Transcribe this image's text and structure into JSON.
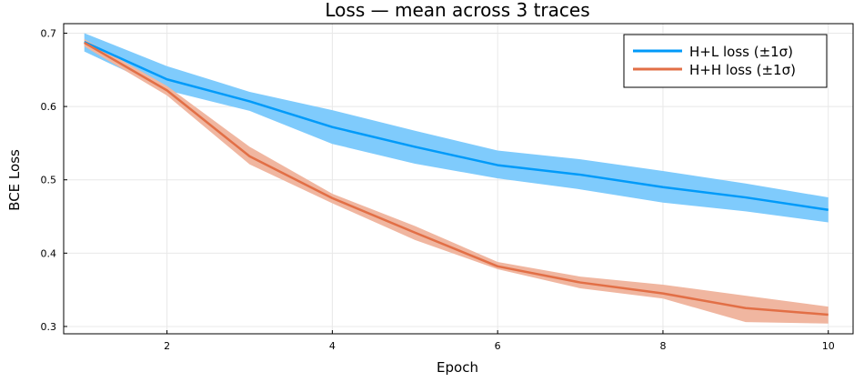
{
  "chart_data": {
    "type": "line",
    "title": "Loss — mean across 3 traces",
    "xlabel": "Epoch",
    "ylabel": "BCE Loss",
    "xlim": [
      0.75,
      10.3
    ],
    "ylim": [
      0.29,
      0.713
    ],
    "x_ticks": [
      2,
      4,
      6,
      8,
      10
    ],
    "y_ticks": [
      0.3,
      0.4,
      0.5,
      0.6,
      0.7
    ],
    "x_tick_labels": [
      "2",
      "4",
      "6",
      "8",
      "10"
    ],
    "y_tick_labels": [
      "0.3",
      "0.4",
      "0.5",
      "0.6",
      "0.7"
    ],
    "grid": true,
    "legend_position": "top-right",
    "x": [
      1,
      2,
      3,
      4,
      5,
      6,
      7,
      8,
      9,
      10
    ],
    "series": [
      {
        "name": "H+L loss (±1σ)",
        "color": "#009af9",
        "band_color": "#7fcbfc",
        "mean": [
          0.688,
          0.637,
          0.607,
          0.572,
          0.545,
          0.52,
          0.507,
          0.49,
          0.476,
          0.459
        ],
        "upper": [
          0.7,
          0.655,
          0.62,
          0.595,
          0.567,
          0.54,
          0.528,
          0.512,
          0.495,
          0.476
        ],
        "lower": [
          0.675,
          0.622,
          0.594,
          0.549,
          0.522,
          0.502,
          0.487,
          0.469,
          0.457,
          0.442
        ]
      },
      {
        "name": "H+H loss (±1σ)",
        "color": "#e26f46",
        "band_color": "#f0b6a0",
        "mean": [
          0.687,
          0.622,
          0.532,
          0.475,
          0.428,
          0.382,
          0.36,
          0.345,
          0.325,
          0.316
        ],
        "upper": [
          0.692,
          0.628,
          0.545,
          0.481,
          0.437,
          0.388,
          0.368,
          0.357,
          0.342,
          0.327
        ],
        "lower": [
          0.682,
          0.615,
          0.521,
          0.468,
          0.418,
          0.378,
          0.352,
          0.338,
          0.306,
          0.304
        ]
      }
    ]
  }
}
